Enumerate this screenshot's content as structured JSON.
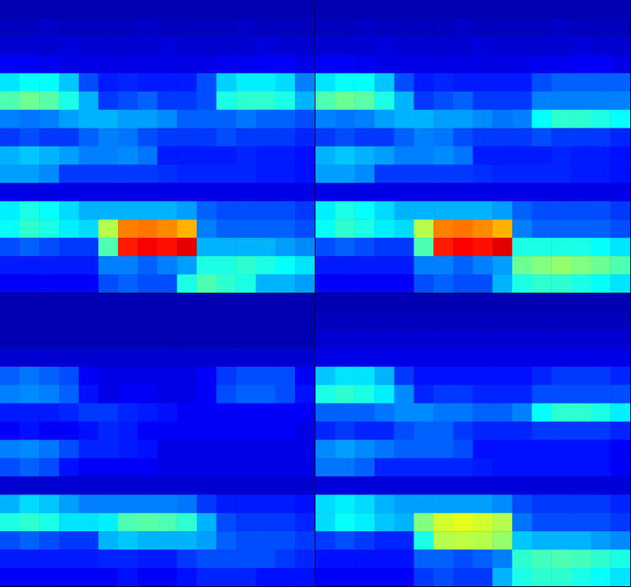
{
  "chart_data": [
    {
      "type": "heatmap",
      "color": "jet",
      "color_range": [
        0,
        100
      ],
      "tick_labels": false,
      "cells": [
        [
          5,
          5,
          5,
          5,
          5,
          5,
          5,
          5,
          5,
          5,
          5,
          5,
          5,
          5,
          5,
          5
        ],
        [
          6,
          6,
          7,
          6,
          6,
          6,
          6,
          7,
          6,
          6,
          6,
          6,
          7,
          6,
          6,
          6
        ],
        [
          8,
          8,
          8,
          9,
          8,
          8,
          8,
          8,
          9,
          8,
          8,
          8,
          8,
          9,
          8,
          8
        ],
        [
          12,
          12,
          11,
          10,
          10,
          10,
          10,
          10,
          10,
          10,
          10,
          11,
          11,
          12,
          12,
          10
        ],
        [
          35,
          38,
          38,
          32,
          20,
          15,
          16,
          15,
          15,
          15,
          20,
          33,
          36,
          36,
          34,
          25
        ],
        [
          45,
          48,
          46,
          40,
          30,
          18,
          20,
          22,
          18,
          18,
          20,
          40,
          42,
          42,
          40,
          30
        ],
        [
          25,
          24,
          25,
          28,
          30,
          30,
          28,
          28,
          26,
          22,
          22,
          22,
          24,
          22,
          22,
          20
        ],
        [
          18,
          20,
          18,
          18,
          22,
          25,
          24,
          20,
          18,
          18,
          18,
          20,
          18,
          18,
          18,
          16
        ],
        [
          30,
          32,
          30,
          28,
          25,
          25,
          26,
          24,
          15,
          15,
          15,
          15,
          16,
          15,
          15,
          14
        ],
        [
          28,
          28,
          26,
          18,
          18,
          18,
          18,
          18,
          17,
          16,
          16,
          16,
          16,
          15,
          15,
          14
        ],
        [
          10,
          10,
          10,
          10,
          10,
          10,
          10,
          10,
          10,
          10,
          10,
          10,
          10,
          10,
          10,
          10
        ],
        [
          36,
          40,
          38,
          34,
          30,
          30,
          30,
          30,
          30,
          28,
          22,
          20,
          20,
          20,
          20,
          18
        ],
        [
          38,
          42,
          40,
          36,
          34,
          55,
          75,
          76,
          74,
          70,
          25,
          22,
          22,
          22,
          22,
          20
        ],
        [
          20,
          22,
          20,
          18,
          18,
          45,
          85,
          88,
          86,
          90,
          30,
          30,
          30,
          30,
          28,
          26
        ],
        [
          15,
          15,
          15,
          15,
          15,
          25,
          25,
          22,
          25,
          28,
          40,
          40,
          42,
          40,
          38,
          35
        ],
        [
          12,
          12,
          12,
          12,
          12,
          20,
          22,
          20,
          20,
          40,
          45,
          42,
          40,
          30,
          30,
          28
        ]
      ]
    },
    {
      "type": "heatmap",
      "color": "jet",
      "color_range": [
        0,
        100
      ],
      "tick_labels": false,
      "cells": [
        [
          5,
          5,
          5,
          5,
          5,
          5,
          5,
          5,
          5,
          5,
          5,
          5,
          5,
          5,
          5,
          5
        ],
        [
          6,
          6,
          7,
          6,
          6,
          6,
          6,
          7,
          6,
          6,
          6,
          6,
          7,
          6,
          6,
          6
        ],
        [
          8,
          8,
          8,
          9,
          8,
          8,
          8,
          8,
          9,
          8,
          8,
          8,
          8,
          9,
          8,
          8
        ],
        [
          12,
          12,
          11,
          10,
          10,
          10,
          10,
          10,
          10,
          10,
          10,
          11,
          11,
          12,
          12,
          10
        ],
        [
          35,
          38,
          38,
          32,
          20,
          15,
          16,
          15,
          15,
          15,
          15,
          20,
          22,
          22,
          22,
          22
        ],
        [
          45,
          48,
          46,
          40,
          30,
          18,
          20,
          22,
          18,
          18,
          18,
          25,
          25,
          25,
          25,
          25
        ],
        [
          25,
          24,
          25,
          28,
          30,
          30,
          28,
          28,
          26,
          24,
          25,
          38,
          42,
          42,
          40,
          38
        ],
        [
          18,
          20,
          18,
          18,
          22,
          25,
          24,
          20,
          18,
          18,
          18,
          20,
          18,
          18,
          18,
          16
        ],
        [
          30,
          32,
          30,
          28,
          25,
          25,
          26,
          24,
          15,
          15,
          15,
          15,
          16,
          15,
          15,
          14
        ],
        [
          28,
          28,
          26,
          18,
          18,
          18,
          18,
          18,
          17,
          16,
          16,
          16,
          16,
          15,
          15,
          14
        ],
        [
          10,
          10,
          10,
          10,
          10,
          10,
          10,
          10,
          10,
          10,
          10,
          10,
          10,
          10,
          10,
          10
        ],
        [
          36,
          40,
          38,
          34,
          30,
          30,
          30,
          30,
          30,
          28,
          22,
          20,
          20,
          20,
          20,
          18
        ],
        [
          38,
          42,
          40,
          36,
          34,
          55,
          75,
          76,
          74,
          70,
          25,
          22,
          22,
          22,
          22,
          20
        ],
        [
          20,
          22,
          20,
          18,
          18,
          45,
          85,
          88,
          86,
          90,
          40,
          40,
          40,
          40,
          38,
          35
        ],
        [
          15,
          15,
          15,
          15,
          15,
          25,
          25,
          22,
          25,
          28,
          48,
          50,
          52,
          50,
          48,
          45
        ],
        [
          12,
          12,
          12,
          12,
          12,
          20,
          22,
          20,
          20,
          30,
          40,
          42,
          42,
          40,
          38,
          35
        ]
      ]
    },
    {
      "type": "heatmap",
      "color": "jet",
      "color_range": [
        0,
        100
      ],
      "tick_labels": false,
      "cells": [
        [
          5,
          5,
          5,
          5,
          5,
          5,
          5,
          5,
          5,
          5,
          5,
          5,
          5,
          5,
          5,
          5
        ],
        [
          5,
          5,
          5,
          5,
          5,
          5,
          5,
          5,
          5,
          5,
          5,
          5,
          5,
          5,
          5,
          5
        ],
        [
          5,
          5,
          5,
          5,
          5,
          5,
          5,
          5,
          5,
          5,
          5,
          5,
          5,
          5,
          5,
          5
        ],
        [
          8,
          8,
          8,
          8,
          8,
          8,
          8,
          8,
          8,
          8,
          8,
          8,
          8,
          8,
          8,
          8
        ],
        [
          22,
          24,
          22,
          20,
          12,
          10,
          10,
          10,
          10,
          10,
          12,
          18,
          20,
          20,
          20,
          12
        ],
        [
          25,
          26,
          25,
          22,
          14,
          10,
          12,
          12,
          10,
          10,
          12,
          20,
          22,
          22,
          20,
          14
        ],
        [
          15,
          15,
          15,
          16,
          18,
          18,
          16,
          15,
          14,
          12,
          12,
          12,
          12,
          12,
          12,
          12
        ],
        [
          12,
          14,
          12,
          12,
          14,
          16,
          15,
          12,
          12,
          12,
          12,
          12,
          12,
          12,
          12,
          10
        ],
        [
          25,
          26,
          24,
          20,
          16,
          16,
          15,
          14,
          10,
          10,
          10,
          10,
          10,
          10,
          10,
          10
        ],
        [
          20,
          22,
          20,
          14,
          12,
          12,
          12,
          12,
          10,
          10,
          10,
          10,
          10,
          10,
          10,
          10
        ],
        [
          8,
          8,
          8,
          8,
          8,
          8,
          8,
          8,
          8,
          8,
          8,
          8,
          8,
          8,
          8,
          8
        ],
        [
          30,
          34,
          32,
          28,
          25,
          25,
          25,
          25,
          25,
          24,
          18,
          15,
          15,
          15,
          15,
          14
        ],
        [
          40,
          42,
          40,
          35,
          35,
          36,
          45,
          46,
          45,
          42,
          30,
          20,
          18,
          18,
          18,
          16
        ],
        [
          20,
          22,
          20,
          18,
          18,
          30,
          32,
          30,
          30,
          30,
          28,
          22,
          20,
          20,
          20,
          18
        ],
        [
          15,
          15,
          15,
          15,
          15,
          16,
          16,
          15,
          15,
          18,
          20,
          20,
          20,
          20,
          18,
          16
        ],
        [
          12,
          12,
          12,
          12,
          12,
          12,
          14,
          12,
          12,
          14,
          16,
          16,
          16,
          14,
          14,
          14
        ]
      ]
    },
    {
      "type": "heatmap",
      "color": "jet",
      "color_range": [
        0,
        100
      ],
      "tick_labels": false,
      "cells": [
        [
          5,
          5,
          5,
          5,
          5,
          5,
          5,
          5,
          5,
          5,
          5,
          5,
          5,
          5,
          5,
          5
        ],
        [
          6,
          6,
          6,
          6,
          6,
          6,
          6,
          6,
          6,
          6,
          6,
          6,
          6,
          6,
          6,
          6
        ],
        [
          8,
          8,
          8,
          8,
          8,
          8,
          8,
          8,
          8,
          8,
          8,
          8,
          8,
          8,
          8,
          8
        ],
        [
          10,
          10,
          10,
          10,
          10,
          10,
          10,
          10,
          10,
          10,
          10,
          10,
          10,
          10,
          10,
          10
        ],
        [
          32,
          35,
          35,
          30,
          18,
          14,
          14,
          14,
          14,
          14,
          14,
          16,
          18,
          18,
          18,
          16
        ],
        [
          40,
          42,
          40,
          36,
          26,
          16,
          18,
          18,
          16,
          16,
          16,
          20,
          20,
          20,
          20,
          20
        ],
        [
          22,
          22,
          22,
          24,
          26,
          26,
          24,
          24,
          22,
          22,
          25,
          38,
          42,
          42,
          40,
          36
        ],
        [
          16,
          18,
          16,
          16,
          20,
          22,
          22,
          18,
          16,
          16,
          16,
          18,
          18,
          18,
          18,
          16
        ],
        [
          26,
          28,
          26,
          24,
          22,
          22,
          22,
          20,
          14,
          14,
          14,
          14,
          14,
          14,
          14,
          12
        ],
        [
          24,
          24,
          22,
          16,
          16,
          16,
          16,
          16,
          15,
          14,
          14,
          14,
          14,
          14,
          14,
          12
        ],
        [
          9,
          9,
          9,
          9,
          9,
          9,
          9,
          9,
          9,
          9,
          9,
          9,
          9,
          9,
          9,
          9
        ],
        [
          34,
          36,
          34,
          30,
          28,
          28,
          28,
          28,
          28,
          26,
          20,
          18,
          18,
          18,
          18,
          16
        ],
        [
          34,
          38,
          36,
          32,
          30,
          50,
          58,
          60,
          58,
          55,
          24,
          20,
          20,
          20,
          20,
          18
        ],
        [
          18,
          20,
          18,
          16,
          16,
          40,
          55,
          56,
          55,
          52,
          32,
          30,
          30,
          30,
          28,
          26
        ],
        [
          14,
          14,
          14,
          14,
          14,
          22,
          22,
          20,
          22,
          25,
          42,
          44,
          45,
          44,
          42,
          40
        ],
        [
          12,
          12,
          12,
          12,
          12,
          18,
          20,
          18,
          18,
          30,
          40,
          42,
          42,
          40,
          38,
          35
        ]
      ]
    }
  ]
}
